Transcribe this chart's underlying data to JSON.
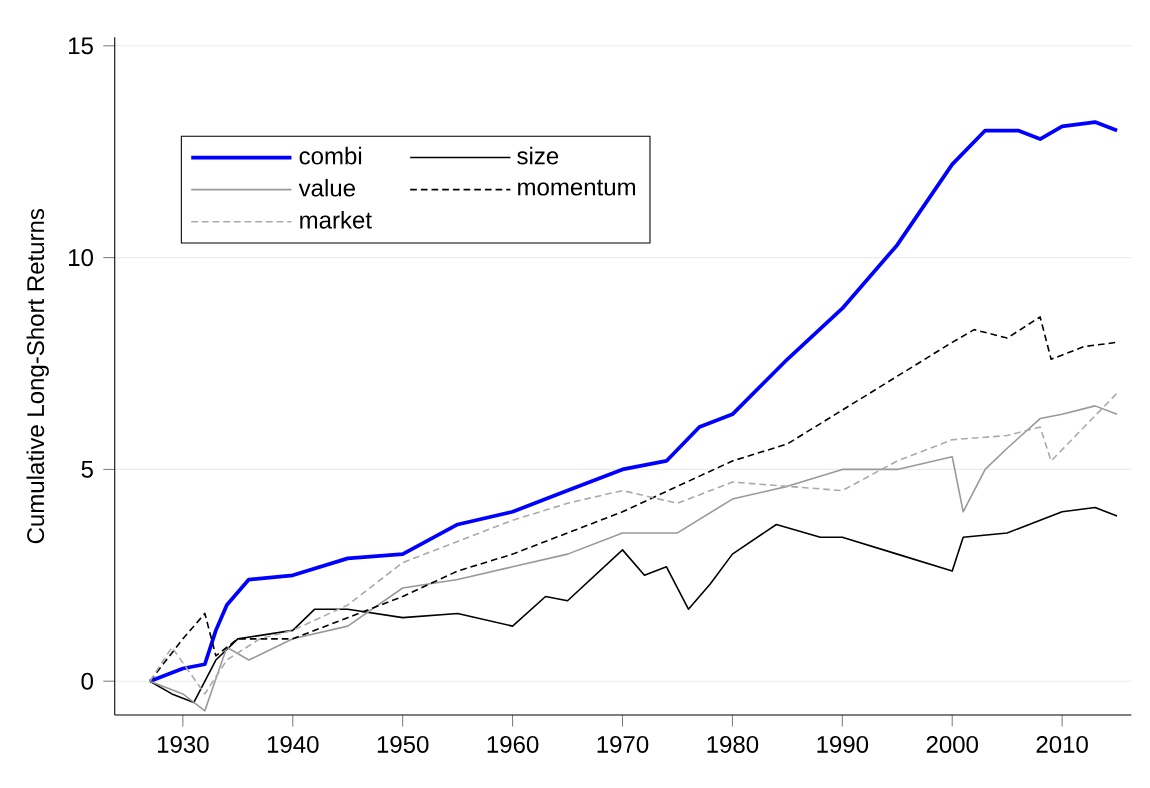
{
  "chart_data": {
    "type": "line",
    "ylabel": "Cumulative Long-Short Returns",
    "xlim": [
      1923.8,
      2016.3
    ],
    "ylim": [
      -0.8,
      15.2
    ],
    "xticks": [
      1930,
      1940,
      1950,
      1960,
      1970,
      1980,
      1990,
      2000,
      2010
    ],
    "yticks": [
      0,
      5,
      10,
      15
    ],
    "grid": "y",
    "legend": "top left",
    "series": [
      {
        "name": "combi",
        "color": "#0000ff",
        "line_style": "solid",
        "x": [
          1927,
          1930,
          1932,
          1933,
          1934,
          1936,
          1940,
          1945,
          1950,
          1955,
          1960,
          1965,
          1970,
          1974,
          1977,
          1980,
          1985,
          1990,
          1995,
          2000,
          2003,
          2006,
          2008,
          2010,
          2013,
          2015
        ],
        "values": [
          0,
          0.3,
          0.4,
          1.2,
          1.8,
          2.4,
          2.5,
          2.9,
          3.0,
          3.7,
          4.0,
          4.5,
          5.0,
          5.2,
          6.0,
          6.3,
          7.6,
          8.8,
          10.3,
          12.2,
          13.0,
          13.0,
          12.8,
          13.1,
          13.2,
          13.0
        ]
      },
      {
        "name": "size",
        "color": "#000000",
        "line_style": "solid",
        "x": [
          1927,
          1929,
          1931,
          1933,
          1935,
          1940,
          1942,
          1945,
          1950,
          1955,
          1960,
          1963,
          1965,
          1970,
          1972,
          1974,
          1976,
          1978,
          1980,
          1984,
          1988,
          1990,
          1995,
          2000,
          2001,
          2005,
          2010,
          2013,
          2015
        ],
        "values": [
          0,
          -0.3,
          -0.5,
          0.5,
          1.0,
          1.2,
          1.7,
          1.7,
          1.5,
          1.6,
          1.3,
          2.0,
          1.9,
          3.1,
          2.5,
          2.7,
          1.7,
          2.3,
          3.0,
          3.7,
          3.4,
          3.4,
          3.0,
          2.6,
          3.4,
          3.5,
          4.0,
          4.1,
          3.9
        ]
      },
      {
        "name": "value",
        "color": "#999999",
        "line_style": "solid",
        "x": [
          1927,
          1930,
          1932,
          1934,
          1936,
          1940,
          1945,
          1950,
          1955,
          1960,
          1965,
          1970,
          1975,
          1980,
          1985,
          1990,
          1995,
          2000,
          2001,
          2003,
          2005,
          2008,
          2010,
          2013,
          2015
        ],
        "values": [
          0,
          -0.3,
          -0.7,
          0.8,
          0.5,
          1.0,
          1.3,
          2.2,
          2.4,
          2.7,
          3.0,
          3.5,
          3.5,
          4.3,
          4.6,
          5.0,
          5.0,
          5.3,
          4.0,
          5.0,
          5.5,
          6.2,
          6.3,
          6.5,
          6.3
        ]
      },
      {
        "name": "momentum",
        "color": "#000000",
        "line_style": "dashed",
        "x": [
          1927,
          1930,
          1932,
          1933,
          1935,
          1940,
          1945,
          1950,
          1955,
          1960,
          1965,
          1970,
          1975,
          1980,
          1985,
          1990,
          1995,
          2000,
          2002,
          2005,
          2008,
          2009,
          2012,
          2015
        ],
        "values": [
          0,
          1.0,
          1.6,
          0.6,
          1.0,
          1.0,
          1.5,
          2.0,
          2.6,
          3.0,
          3.5,
          4.0,
          4.6,
          5.2,
          5.6,
          6.4,
          7.2,
          8.0,
          8.3,
          8.1,
          8.6,
          7.6,
          7.9,
          8.0
        ]
      },
      {
        "name": "market",
        "color": "#aaaaaa",
        "line_style": "dashed",
        "x": [
          1927,
          1929,
          1932,
          1934,
          1937,
          1940,
          1945,
          1950,
          1955,
          1960,
          1965,
          1970,
          1975,
          1980,
          1985,
          1990,
          1995,
          2000,
          2005,
          2008,
          2009,
          2012,
          2015
        ],
        "values": [
          0,
          0.8,
          -0.3,
          0.5,
          1.0,
          1.2,
          1.8,
          2.8,
          3.3,
          3.8,
          4.2,
          4.5,
          4.2,
          4.7,
          4.6,
          4.5,
          5.2,
          5.7,
          5.8,
          6.0,
          5.2,
          6.0,
          6.8
        ]
      }
    ]
  }
}
